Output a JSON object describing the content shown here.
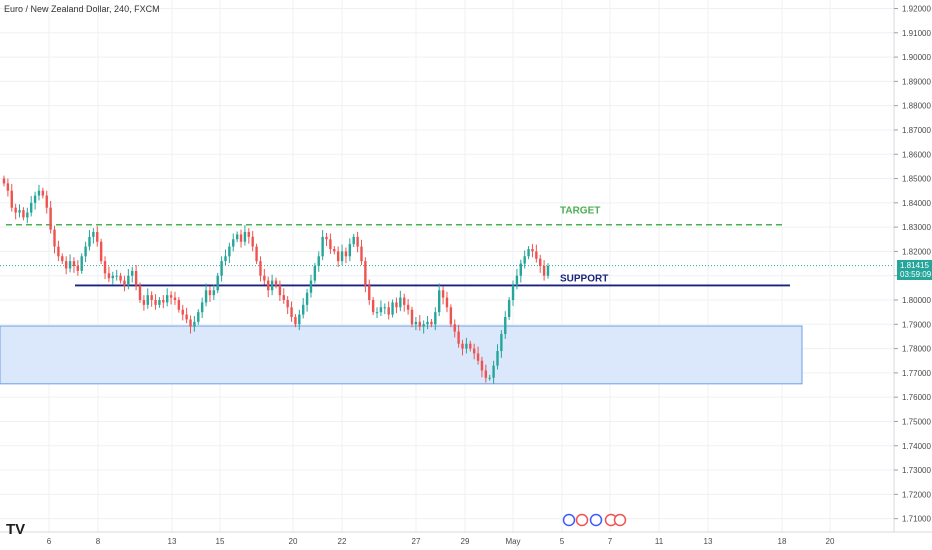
{
  "header": {
    "title": "Euro / New Zealand Dollar, 240, FXCM"
  },
  "watermark": "TV",
  "price_axis": {
    "last_price": "1.81415",
    "countdown": "03:59:09"
  },
  "annotations": {
    "target_label": "TARGET",
    "support_label": "SUPPORT"
  },
  "colors": {
    "up": "#26a69a",
    "down": "#ef5350",
    "target_line": "#4caf50",
    "support_line": "#1a237e",
    "zone_fill": "#dbe7fb",
    "zone_border": "#6f9fe6",
    "price_tag": "#26a69a",
    "grid": "#eef0f3"
  },
  "chart_data": {
    "type": "candlestick",
    "title": "Euro / New Zealand Dollar, 240, FXCM",
    "y_ticks": [
      "1.92000",
      "1.91000",
      "1.90000",
      "1.89000",
      "1.88000",
      "1.87000",
      "1.86000",
      "1.85000",
      "1.84000",
      "1.83000",
      "1.82000",
      "1.81000",
      "1.80000",
      "1.79000",
      "1.78000",
      "1.77000",
      "1.76000",
      "1.75000",
      "1.74000",
      "1.73000",
      "1.72000",
      "1.71000"
    ],
    "x_ticks": [
      "6",
      "8",
      "13",
      "15",
      "20",
      "22",
      "27",
      "29",
      "May",
      "5",
      "7",
      "11",
      "13",
      "18",
      "20"
    ],
    "ylim": [
      1.7045,
      1.9235
    ],
    "grid": true,
    "levels": {
      "target": 1.831,
      "support": 1.806,
      "zone_top": 1.7893,
      "zone_bottom": 1.7655,
      "last": 1.81415
    },
    "closes": [
      1.848,
      1.845,
      1.838,
      1.836,
      1.837,
      1.834,
      1.836,
      1.84,
      1.843,
      1.845,
      1.843,
      1.838,
      1.829,
      1.822,
      1.818,
      1.816,
      1.813,
      1.816,
      1.814,
      1.812,
      1.818,
      1.822,
      1.826,
      1.828,
      1.824,
      1.816,
      1.811,
      1.809,
      1.81,
      1.81,
      1.808,
      1.806,
      1.81,
      1.812,
      1.806,
      1.8,
      1.798,
      1.802,
      1.8,
      1.798,
      1.8,
      1.799,
      1.802,
      1.801,
      1.8,
      1.796,
      1.794,
      1.792,
      1.789,
      1.791,
      1.795,
      1.799,
      1.804,
      1.802,
      1.804,
      1.81,
      1.816,
      1.818,
      1.822,
      1.825,
      1.827,
      1.824,
      1.828,
      1.826,
      1.822,
      1.816,
      1.81,
      1.808,
      1.804,
      1.808,
      1.806,
      1.802,
      1.8,
      1.797,
      1.793,
      1.79,
      1.794,
      1.798,
      1.803,
      1.808,
      1.814,
      1.818,
      1.826,
      1.825,
      1.821,
      1.82,
      1.816,
      1.82,
      1.818,
      1.823,
      1.826,
      1.822,
      1.816,
      1.806,
      1.8,
      1.795,
      1.795,
      1.797,
      1.797,
      1.794,
      1.799,
      1.797,
      1.801,
      1.798,
      1.796,
      1.79,
      1.791,
      1.789,
      1.79,
      1.791,
      1.79,
      1.795,
      1.804,
      1.801,
      1.797,
      1.79,
      1.787,
      1.782,
      1.78,
      1.782,
      1.78,
      1.778,
      1.775,
      1.771,
      1.768,
      1.768,
      1.773,
      1.779,
      1.786,
      1.793,
      1.8,
      1.806,
      1.81,
      1.815,
      1.818,
      1.821,
      1.82,
      1.817,
      1.814,
      1.81,
      1.814
    ]
  }
}
